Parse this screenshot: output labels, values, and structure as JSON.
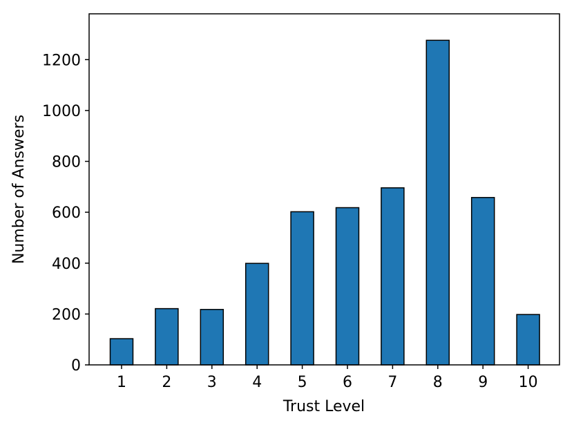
{
  "chart_data": {
    "type": "bar",
    "title": "",
    "xlabel": "Trust Level",
    "ylabel": "Number of Answers",
    "categories": [
      "1",
      "2",
      "3",
      "4",
      "5",
      "6",
      "7",
      "8",
      "9",
      "10"
    ],
    "values": [
      103,
      221,
      218,
      399,
      602,
      618,
      696,
      1276,
      658,
      198
    ],
    "ylim": [
      0,
      1380
    ],
    "yticks": [
      0,
      200,
      400,
      600,
      800,
      1000,
      1200
    ],
    "ytick_labels": [
      "0",
      "200",
      "400",
      "600",
      "800",
      "1000",
      "1200"
    ],
    "grid": false,
    "legend": "none",
    "colors": {
      "bar_fill": "#1f77b4",
      "bar_edge": "#000000",
      "axis": "#000000"
    }
  }
}
